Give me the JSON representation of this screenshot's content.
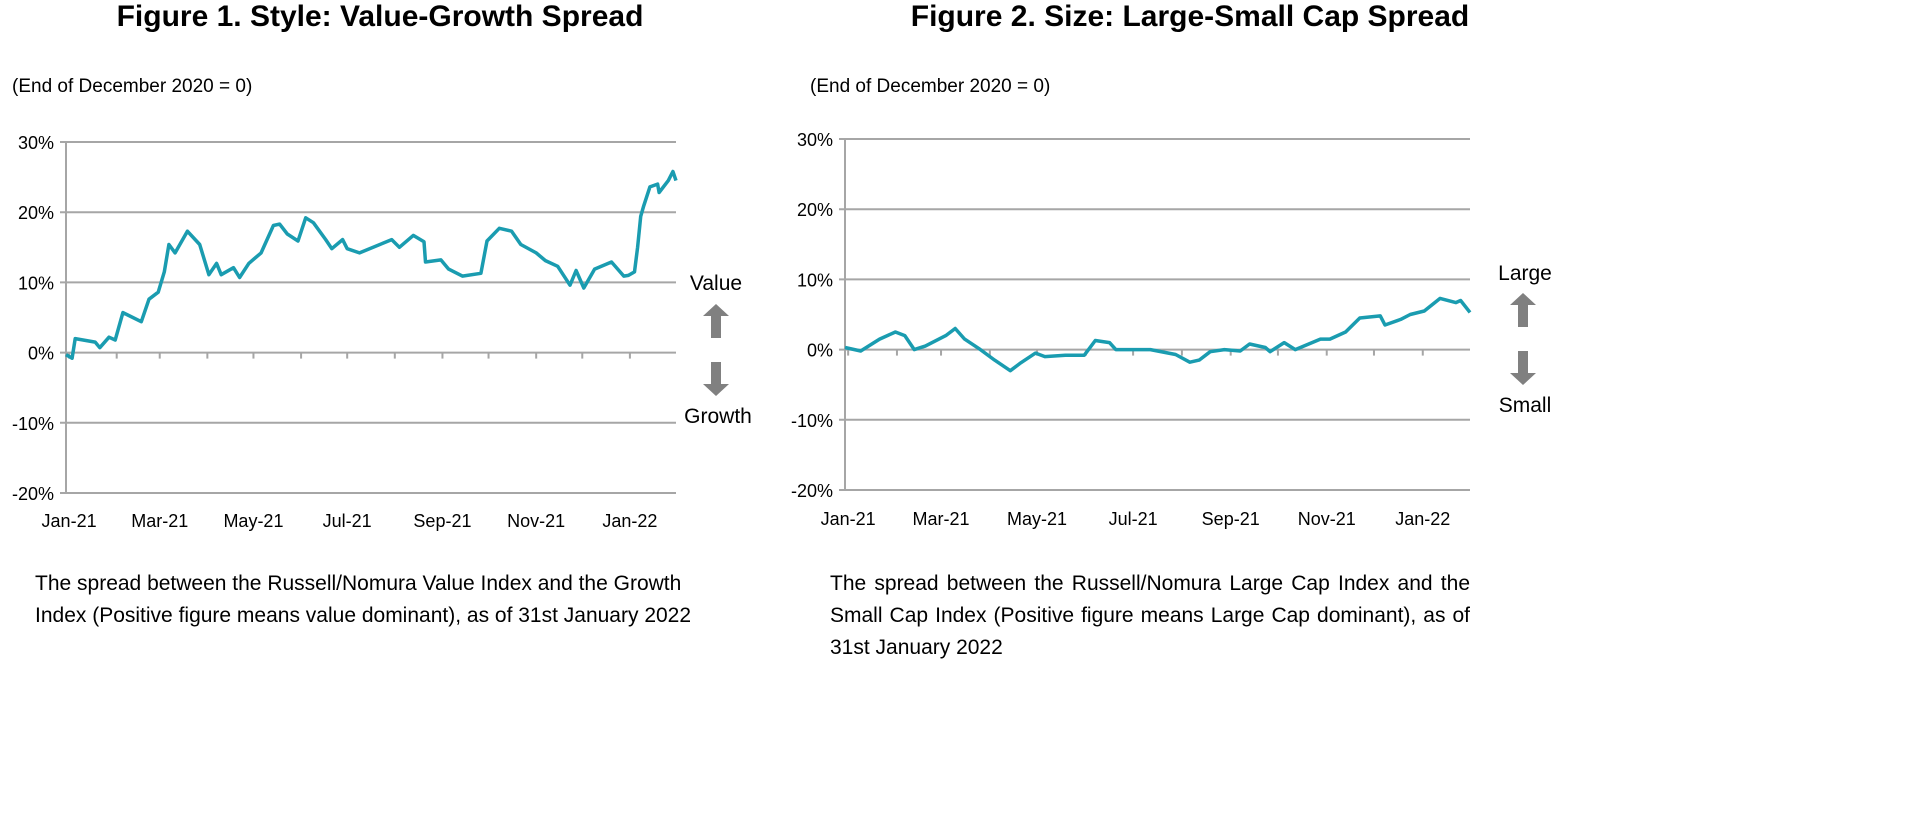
{
  "line_color": "#1a9cb0",
  "grid_color": "#a6a6a6",
  "arrow_color": "#808080",
  "chart_data": [
    {
      "type": "line",
      "title": "Figure 1. Style: Value-Growth Spread",
      "subtitle": "(End of December 2020 = 0)",
      "ylim": [
        -20,
        30
      ],
      "yticks": [
        -20,
        -10,
        0,
        10,
        20,
        30
      ],
      "ytick_labels": [
        "-20%",
        "-10%",
        "0%",
        "10%",
        "20%",
        "30%"
      ],
      "xtick_labels": [
        "Jan-21",
        "Mar-21",
        "May-21",
        "Jul-21",
        "Sep-21",
        "Nov-21",
        "Jan-22"
      ],
      "xtick_dates": [
        "2021-01-01",
        "2021-03-01",
        "2021-05-01",
        "2021-07-01",
        "2021-09-01",
        "2021-11-01",
        "2022-01-01"
      ],
      "xlim": [
        "2020-12-30",
        "2022-01-31"
      ],
      "grid": true,
      "up_label": "Value",
      "down_label": "Growth",
      "caption": "The spread between the Russell/Nomura Value Index and the Growth Index (Positive figure means value dominant), as of 31st January 2022",
      "x": [
        "2020-12-30",
        "2021-01-03",
        "2021-01-05",
        "2021-01-18",
        "2021-01-21",
        "2021-01-27",
        "2021-01-31",
        "2021-02-05",
        "2021-02-17",
        "2021-02-22",
        "2021-02-28",
        "2021-03-04",
        "2021-03-07",
        "2021-03-11",
        "2021-03-19",
        "2021-03-27",
        "2021-04-02",
        "2021-04-07",
        "2021-04-10",
        "2021-04-18",
        "2021-04-22",
        "2021-04-28",
        "2021-05-06",
        "2021-05-14",
        "2021-05-18",
        "2021-05-23",
        "2021-05-30",
        "2021-06-04",
        "2021-06-09",
        "2021-06-17",
        "2021-06-21",
        "2021-06-28",
        "2021-07-01",
        "2021-07-09",
        "2021-07-30",
        "2021-08-04",
        "2021-08-13",
        "2021-08-20",
        "2021-08-21",
        "2021-08-31",
        "2021-09-05",
        "2021-09-14",
        "2021-09-26",
        "2021-09-30",
        "2021-10-08",
        "2021-10-16",
        "2021-10-22",
        "2021-11-01",
        "2021-11-07",
        "2021-11-15",
        "2021-11-23",
        "2021-11-27",
        "2021-12-02",
        "2021-12-09",
        "2021-12-20",
        "2021-12-28",
        "2021-12-31",
        "2022-01-04",
        "2022-01-06",
        "2022-01-08",
        "2022-01-10",
        "2022-01-14",
        "2022-01-19",
        "2022-01-20",
        "2022-01-26",
        "2022-01-29",
        "2022-01-31"
      ],
      "y": [
        -0.3,
        -0.8,
        2.0,
        1.5,
        0.7,
        2.2,
        1.8,
        5.7,
        4.4,
        7.6,
        8.6,
        11.5,
        15.4,
        14.2,
        17.3,
        15.4,
        11.1,
        12.7,
        11.1,
        12.1,
        10.7,
        12.7,
        14.2,
        18.1,
        18.3,
        16.9,
        15.9,
        19.2,
        18.5,
        16.1,
        14.8,
        16.1,
        14.8,
        14.2,
        16.1,
        15.0,
        16.7,
        15.8,
        12.9,
        13.2,
        11.9,
        10.9,
        11.3,
        15.9,
        17.7,
        17.3,
        15.4,
        14.2,
        13.1,
        12.3,
        9.6,
        11.7,
        9.2,
        11.9,
        12.9,
        10.9,
        11.0,
        11.5,
        15.0,
        19.4,
        20.9,
        23.6,
        24.0,
        22.8,
        24.5,
        25.8,
        24.5
      ]
    },
    {
      "type": "line",
      "title": "Figure 2. Size: Large-Small Cap Spread",
      "subtitle": "(End of December 2020 = 0)",
      "ylim": [
        -20,
        30
      ],
      "yticks": [
        -20,
        -10,
        0,
        10,
        20,
        30
      ],
      "ytick_labels": [
        "-20%",
        "-10%",
        "0%",
        "10%",
        "20%",
        "30%"
      ],
      "xtick_labels": [
        "Jan-21",
        "Mar-21",
        "May-21",
        "Jul-21",
        "Sep-21",
        "Nov-21",
        "Jan-22"
      ],
      "xtick_dates": [
        "2021-01-01",
        "2021-03-01",
        "2021-05-01",
        "2021-07-01",
        "2021-09-01",
        "2021-11-01",
        "2022-01-01"
      ],
      "xlim": [
        "2020-12-30",
        "2022-01-31"
      ],
      "grid": true,
      "up_label": "Large",
      "down_label": "Small",
      "caption": "The spread between the Russell/Nomura Large Cap Index and the Small Cap Index (Positive figure means Large Cap dominant), as of 31st January 2022",
      "x": [
        "2020-12-30",
        "2021-01-09",
        "2021-01-21",
        "2021-01-31",
        "2021-02-06",
        "2021-02-12",
        "2021-02-19",
        "2021-03-04",
        "2021-03-10",
        "2021-03-16",
        "2021-03-26",
        "2021-04-04",
        "2021-04-14",
        "2021-04-20",
        "2021-04-30",
        "2021-05-06",
        "2021-05-19",
        "2021-05-31",
        "2021-06-07",
        "2021-06-16",
        "2021-06-20",
        "2021-07-12",
        "2021-07-28",
        "2021-08-06",
        "2021-08-12",
        "2021-08-19",
        "2021-08-28",
        "2021-09-07",
        "2021-09-13",
        "2021-09-23",
        "2021-09-26",
        "2021-10-05",
        "2021-10-12",
        "2021-10-28",
        "2021-11-03",
        "2021-11-13",
        "2021-11-22",
        "2021-12-05",
        "2021-12-08",
        "2021-12-18",
        "2021-12-24",
        "2022-01-02",
        "2022-01-12",
        "2022-01-22",
        "2022-01-25",
        "2022-01-31"
      ],
      "y": [
        0.3,
        -0.2,
        1.5,
        2.5,
        2.0,
        0.0,
        0.5,
        2.0,
        3.0,
        1.5,
        0.0,
        -1.5,
        -3.0,
        -2.0,
        -0.5,
        -1.0,
        -0.8,
        -0.8,
        1.3,
        1.0,
        0.0,
        0.0,
        -0.7,
        -1.8,
        -1.5,
        -0.3,
        0.0,
        -0.2,
        0.8,
        0.3,
        -0.3,
        1.0,
        0.0,
        1.5,
        1.5,
        2.5,
        4.5,
        4.8,
        3.5,
        4.3,
        5.0,
        5.5,
        7.3,
        6.7,
        7.0,
        5.3
      ]
    }
  ]
}
